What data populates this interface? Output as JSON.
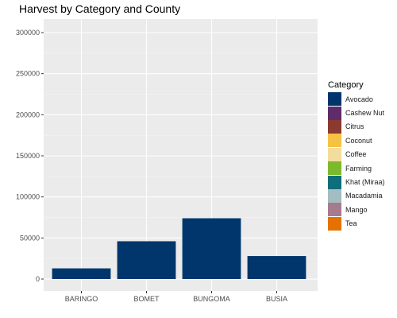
{
  "chart_data": {
    "type": "bar",
    "title": "Harvest by Category and County",
    "xlabel": "",
    "ylabel": "",
    "categories": [
      "BARINGO",
      "BOMET",
      "BUNGOMA",
      "BUSIA"
    ],
    "series": [
      {
        "name": "Avocado",
        "color": "#00366C",
        "values": [
          13000,
          46000,
          74000,
          28000
        ]
      }
    ],
    "ylim": [
      0,
      300000
    ],
    "y_ticks": [
      0,
      50000,
      100000,
      150000,
      200000,
      250000,
      300000
    ],
    "y_tick_labels": [
      "0",
      "50000",
      "100000",
      "150000",
      "200000",
      "250000",
      "300000"
    ],
    "grid": true,
    "panel_background": "#EBEBEB",
    "legend": {
      "title": "Category",
      "position": "right",
      "items": [
        {
          "label": "Avocado",
          "color": "#00366C"
        },
        {
          "label": "Cashew Nut",
          "color": "#5E2C6B"
        },
        {
          "label": "Citrus",
          "color": "#8B3A2F"
        },
        {
          "label": "Coconut",
          "color": "#F6C244"
        },
        {
          "label": "Coffee",
          "color": "#F3DC9E"
        },
        {
          "label": "Farming",
          "color": "#7BBA2B"
        },
        {
          "label": "Khat (Miraa)",
          "color": "#0F6E7C"
        },
        {
          "label": "Macadamia",
          "color": "#A3BDC1"
        },
        {
          "label": "Mango",
          "color": "#A67B8D"
        },
        {
          "label": "Tea",
          "color": "#E57200"
        }
      ]
    }
  }
}
